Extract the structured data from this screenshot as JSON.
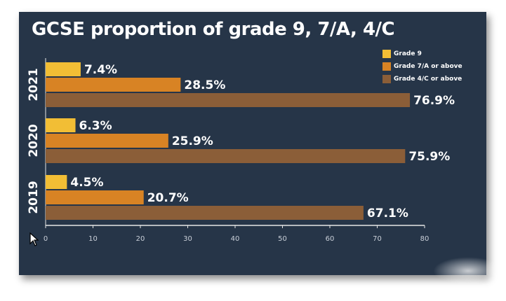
{
  "chart_data": {
    "type": "bar",
    "orientation": "horizontal",
    "title": "GCSE proportion of grade 9, 7/A, 4/C",
    "categories": [
      "2021",
      "2020",
      "2019"
    ],
    "series": [
      {
        "name": "Grade 9",
        "color": "#f2be35",
        "values": [
          7.4,
          6.3,
          4.5
        ],
        "labels": [
          "7.4%",
          "6.3%",
          "4.5%"
        ]
      },
      {
        "name": "Grade 7/A or above",
        "color": "#d88324",
        "values": [
          28.5,
          25.9,
          20.7
        ],
        "labels": [
          "28.5%",
          "25.9%",
          "20.7%"
        ]
      },
      {
        "name": "Grade 4/C or above",
        "color": "#8b5e38",
        "values": [
          76.9,
          75.9,
          67.1
        ],
        "labels": [
          "76.9%",
          "75.9%",
          "67.1%"
        ]
      }
    ],
    "xlim": [
      0,
      80
    ],
    "xticks": [
      "0",
      "10",
      "20",
      "30",
      "40",
      "50",
      "60",
      "70",
      "80"
    ],
    "legend_position": "top-right",
    "grid": false
  }
}
